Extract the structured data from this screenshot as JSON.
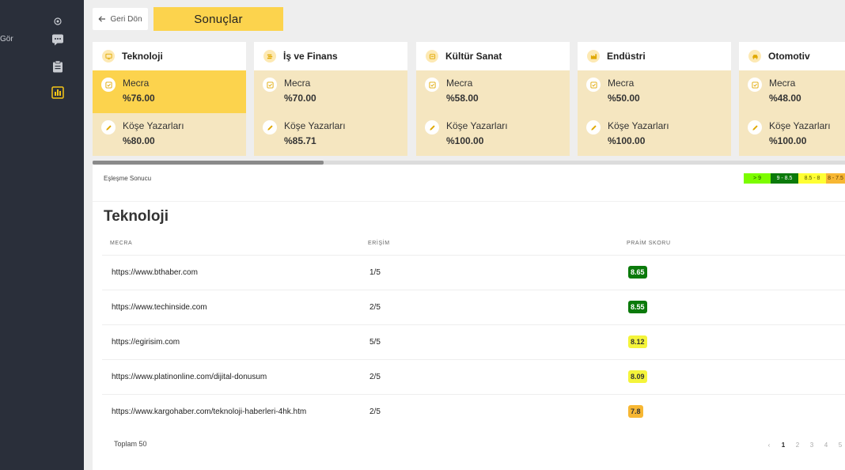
{
  "sidebar": {
    "label": "Gör",
    "icons": [
      "gear-icon",
      "chat-icon",
      "clipboard-icon",
      "bar-chart-icon"
    ]
  },
  "header": {
    "back_label": "Geri Dön",
    "title": "Sonuçlar"
  },
  "cards": [
    {
      "name": "Teknoloji",
      "icon": "monitor-icon",
      "mecra_label": "Mecra",
      "mecra_value": "%76.00",
      "kose_label": "Köşe Yazarları",
      "kose_value": "%80.00"
    },
    {
      "name": "İş ve Finans",
      "icon": "coins-icon",
      "mecra_label": "Mecra",
      "mecra_value": "%70.00",
      "kose_label": "Köşe Yazarları",
      "kose_value": "%85.71"
    },
    {
      "name": "Kültür Sanat",
      "icon": "palette-icon",
      "mecra_label": "Mecra",
      "mecra_value": "%58.00",
      "kose_label": "Köşe Yazarları",
      "kose_value": "%100.00"
    },
    {
      "name": "Endüstri",
      "icon": "factory-icon",
      "mecra_label": "Mecra",
      "mecra_value": "%50.00",
      "kose_label": "Köşe Yazarları",
      "kose_value": "%100.00"
    },
    {
      "name": "Otomotiv",
      "icon": "car-icon",
      "mecra_label": "Mecra",
      "mecra_value": "%48.00",
      "kose_label": "Köşe Yazarları",
      "kose_value": "%100.00"
    }
  ],
  "results": {
    "match_label": "Eşleşme Sonucu",
    "legend": [
      {
        "label": "> 9",
        "bg": "#7cfc00",
        "fg": "#1a5200"
      },
      {
        "label": "9 - 8.5",
        "bg": "#0b7a0b",
        "fg": "#ffffff"
      },
      {
        "label": "8.5 - 8",
        "bg": "#ffff33",
        "fg": "#555500"
      },
      {
        "label": "8 - 7.5",
        "bg": "#f7b733",
        "fg": "#5a3a00"
      }
    ],
    "section_title": "Teknoloji",
    "columns": [
      "MECRA",
      "ERİŞİM",
      "PRAİM SKORU"
    ],
    "rows": [
      {
        "url": "https://www.bthaber.com",
        "reach": "1/5",
        "score": "8.65",
        "bg": "#0b7a0b",
        "fg": "#ffffff"
      },
      {
        "url": "https://www.techinside.com",
        "reach": "2/5",
        "score": "8.55",
        "bg": "#0b7a0b",
        "fg": "#ffffff"
      },
      {
        "url": "https://egirisim.com",
        "reach": "5/5",
        "score": "8.12",
        "bg": "#f4f43a",
        "fg": "#333333"
      },
      {
        "url": "https://www.platinonline.com/dijital-donusum",
        "reach": "2/5",
        "score": "8.09",
        "bg": "#f4f43a",
        "fg": "#333333"
      },
      {
        "url": "https://www.kargohaber.com/teknoloji-haberleri-4hk.htm",
        "reach": "2/5",
        "score": "7.8",
        "bg": "#f7b733",
        "fg": "#333333"
      }
    ],
    "total": "Toplam 50",
    "pagination": {
      "prev": "‹",
      "pages": [
        "1",
        "2",
        "3",
        "4",
        "5"
      ],
      "current": "1"
    }
  }
}
